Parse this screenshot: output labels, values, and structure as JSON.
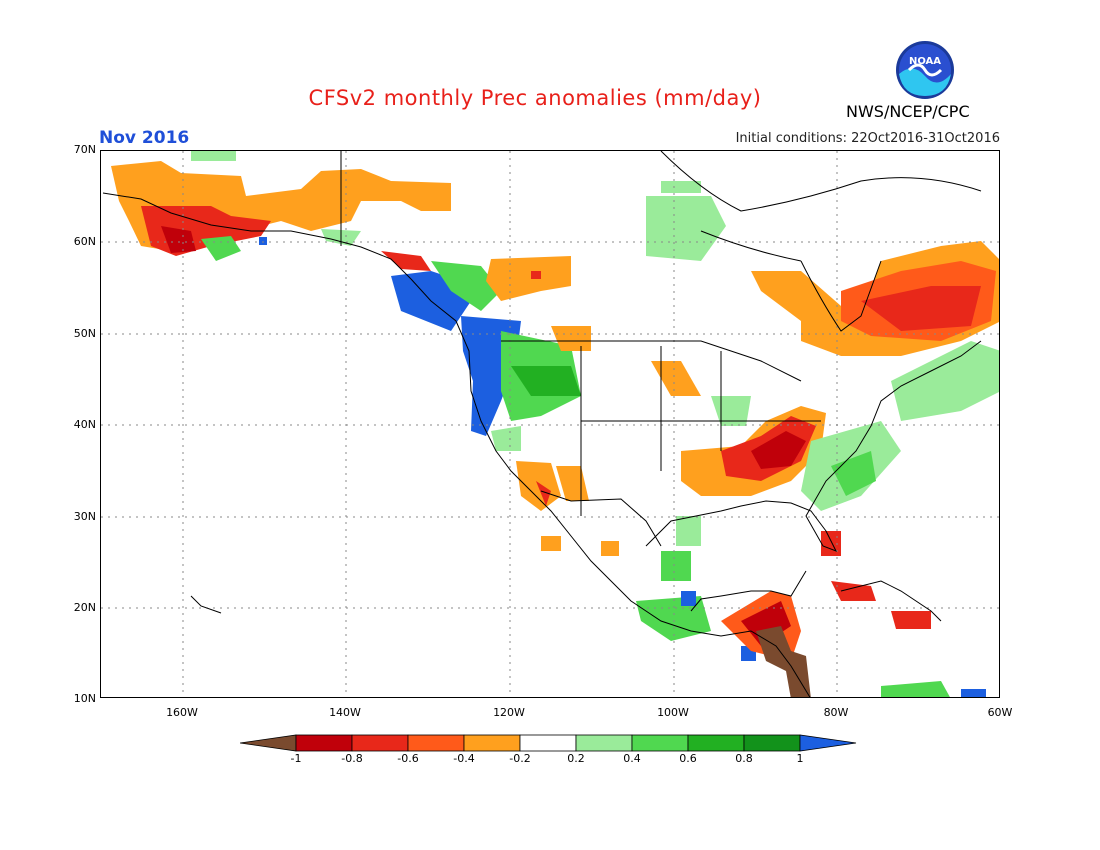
{
  "header": {
    "title": "CFSv2 monthly Prec anomalies (mm/day)",
    "agency": "NWS/NCEP/CPC",
    "month": "Nov 2016",
    "initial_conditions": "Initial conditions: 22Oct2016-31Oct2016",
    "logo_text": "NOAA"
  },
  "axes": {
    "lat_labels": [
      "70N",
      "60N",
      "50N",
      "40N",
      "30N",
      "20N",
      "10N"
    ],
    "lon_labels": [
      "160W",
      "140W",
      "120W",
      "100W",
      "80W",
      "60W"
    ]
  },
  "colorbar": {
    "labels": [
      "-1",
      "-0.8",
      "-0.6",
      "-0.4",
      "-0.2",
      "0.2",
      "0.4",
      "0.6",
      "0.8",
      "1"
    ],
    "colors": [
      "#7a4a2e",
      "#c0000a",
      "#e8281a",
      "#ff5a1a",
      "#ffa01e",
      "#ffffff",
      "#9aeb9a",
      "#50d850",
      "#22b022",
      "#12921b",
      "#1c5fe0"
    ]
  },
  "anomaly_colors": {
    "dry_extreme": "#7a4a2e",
    "dry_strong": "#c0000a",
    "dry_moderate": "#e8281a",
    "dry_mild": "#ff5a1a",
    "dry_weak": "#ffa01e",
    "wet_weak": "#9aeb9a",
    "wet_mild": "#50d850",
    "wet_moderate": "#22b022",
    "wet_strong": "#12921b",
    "wet_extreme": "#1c5fe0"
  }
}
